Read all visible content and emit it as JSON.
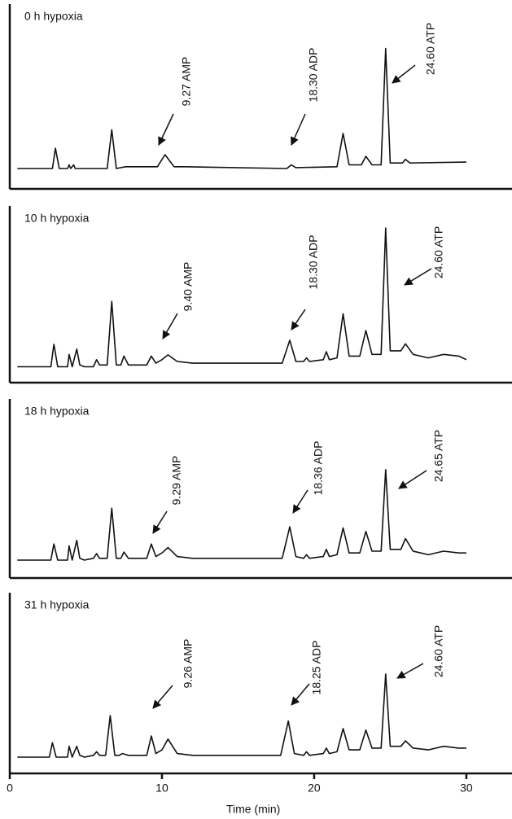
{
  "chart_data": [
    {
      "type": "line",
      "title": "0 h hypoxia",
      "xlim": [
        0,
        33
      ],
      "ylim": [
        0,
        100
      ],
      "annotations": [
        "9.27 AMP",
        "18.30 ADP",
        "24.60 ATP"
      ],
      "x": [
        0.5,
        2.8,
        3.0,
        3.25,
        3.8,
        3.9,
        4.0,
        4.2,
        4.3,
        4.5,
        6.4,
        6.7,
        7.0,
        7.6,
        9.7,
        10.2,
        10.8,
        11.5,
        18.2,
        18.5,
        18.8,
        21.5,
        21.9,
        22.3,
        23.1,
        23.4,
        23.8,
        24.4,
        24.7,
        25.0,
        25.8,
        26.0,
        26.3,
        30
      ],
      "values": [
        11,
        11,
        22,
        11,
        11,
        13,
        11,
        13,
        11,
        11,
        11,
        32,
        11,
        12,
        12,
        18.5,
        12,
        12,
        11,
        13,
        11.5,
        12,
        30,
        13,
        13,
        17.6,
        13,
        13,
        76,
        14,
        14,
        16,
        14,
        14.5
      ]
    },
    {
      "type": "line",
      "title": "10 h hypoxia",
      "xlim": [
        0,
        33
      ],
      "ylim": [
        0,
        100
      ],
      "annotations": [
        "9.40 AMP",
        "18.30 ADP",
        "24.60 ATP"
      ],
      "x": [
        0.5,
        2.7,
        2.9,
        3.15,
        3.8,
        3.9,
        4.1,
        4.4,
        4.6,
        4.9,
        5.5,
        5.7,
        5.9,
        6.4,
        6.7,
        7.0,
        7.3,
        7.5,
        7.8,
        9.0,
        9.3,
        9.6,
        10.0,
        10.4,
        11.0,
        12,
        17.9,
        18.4,
        18.8,
        19.3,
        19.5,
        19.7,
        20.6,
        20.8,
        21.0,
        21.5,
        21.9,
        22.3,
        23.0,
        23.4,
        23.8,
        24.4,
        24.7,
        25.0,
        25.7,
        26.0,
        26.5,
        27.5,
        28.5,
        29.5,
        30
      ],
      "values": [
        9,
        9,
        21.7,
        9,
        9,
        16,
        9,
        19,
        10,
        9,
        9,
        13,
        10,
        10,
        46,
        10,
        10,
        15,
        10,
        10,
        15,
        11,
        13,
        15.7,
        12,
        11,
        11,
        24,
        12,
        12,
        14,
        12,
        13,
        17.5,
        13,
        14,
        39,
        15,
        15,
        29.5,
        16,
        16,
        87.5,
        18,
        18,
        22,
        16,
        14,
        16,
        15,
        13
      ]
    },
    {
      "type": "line",
      "title": "18 h hypoxia",
      "xlim": [
        0,
        33
      ],
      "ylim": [
        0,
        100
      ],
      "annotations": [
        "9.29 AMP",
        "18.36 ADP",
        "24.65 ATP"
      ],
      "x": [
        0.5,
        2.7,
        2.9,
        3.15,
        3.8,
        3.9,
        4.1,
        4.4,
        4.6,
        4.9,
        5.5,
        5.7,
        5.9,
        6.4,
        6.7,
        7.0,
        7.3,
        7.5,
        7.8,
        9.0,
        9.3,
        9.6,
        10.0,
        10.4,
        11.0,
        12,
        17.9,
        18.4,
        18.8,
        19.3,
        19.5,
        19.7,
        20.6,
        20.8,
        21.0,
        21.5,
        21.9,
        22.3,
        23.0,
        23.4,
        23.8,
        24.4,
        24.7,
        25.0,
        25.7,
        26.0,
        26.5,
        27.5,
        28.5,
        29.5,
        30
      ],
      "values": [
        10,
        10,
        19,
        10,
        10,
        18,
        10,
        21,
        11,
        10,
        11,
        13.6,
        11,
        11,
        39,
        11,
        11,
        14.5,
        11,
        11,
        19,
        12,
        14,
        17,
        12,
        11,
        11,
        28.6,
        12,
        11,
        13,
        11,
        12,
        16,
        12,
        13,
        28,
        14,
        14,
        26,
        15,
        15,
        60.5,
        16,
        16,
        22,
        15,
        13,
        15,
        14,
        14
      ]
    },
    {
      "type": "line",
      "title": "31 h hypoxia",
      "xlim": [
        0,
        33
      ],
      "ylim": [
        0,
        100
      ],
      "annotations": [
        "9.26 AMP",
        "18.25 ADP",
        "24.60 ATP"
      ],
      "x": [
        0.5,
        2.6,
        2.8,
        3.05,
        3.8,
        3.9,
        4.1,
        4.4,
        4.6,
        4.9,
        5.5,
        5.7,
        5.9,
        6.3,
        6.6,
        6.9,
        7.2,
        7.4,
        7.8,
        9.0,
        9.3,
        9.6,
        10.0,
        10.4,
        11.0,
        12,
        17.8,
        18.3,
        18.7,
        19.3,
        19.5,
        19.7,
        20.6,
        20.8,
        21.0,
        21.5,
        21.9,
        22.3,
        23.0,
        23.4,
        23.8,
        24.4,
        24.7,
        25.0,
        25.7,
        26.0,
        26.5,
        27.5,
        28.5,
        29.5,
        30
      ],
      "values": [
        9,
        9,
        17,
        9,
        9,
        15,
        9,
        15,
        10,
        9,
        10,
        12,
        10,
        10,
        32,
        10,
        10,
        11,
        10,
        10,
        20.7,
        11,
        13,
        19,
        11,
        10,
        10,
        29,
        11,
        10,
        12,
        10,
        11,
        14,
        11,
        12,
        24.8,
        13,
        13,
        24,
        14,
        14,
        55,
        15,
        15,
        18,
        14,
        13,
        15,
        14,
        14
      ],
      "xticks": [
        0,
        10,
        20,
        30
      ],
      "xlabel": "Time (min)"
    }
  ]
}
